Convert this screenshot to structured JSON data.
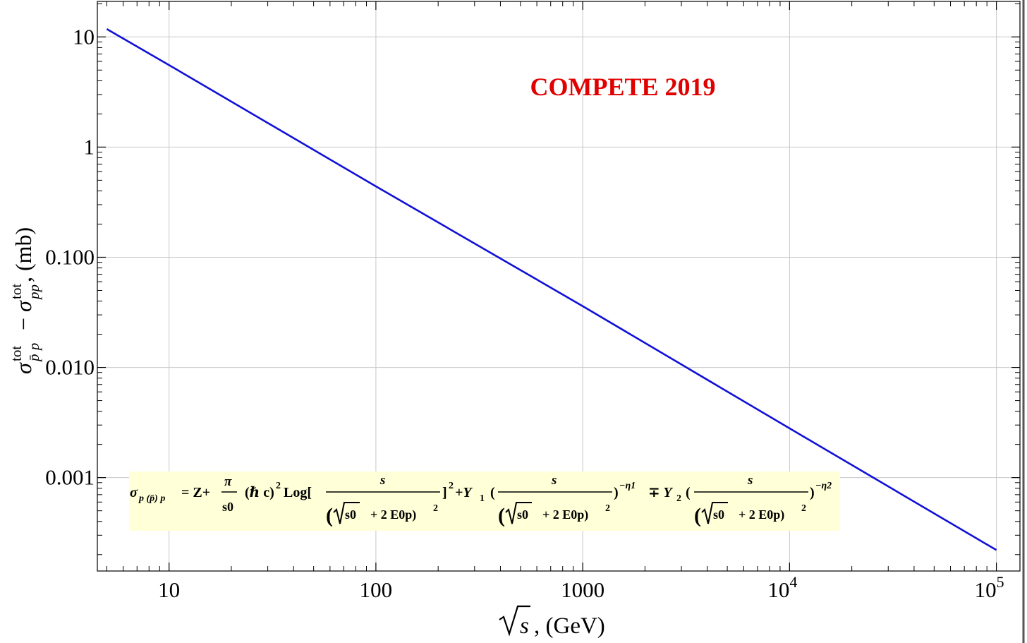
{
  "chart_data": {
    "type": "line",
    "title": "",
    "xlabel": ", (GeV)",
    "ylabel": ", (mb)",
    "x_scale": "log",
    "y_scale": "log",
    "xlim": [
      4.5,
      130000
    ],
    "ylim": [
      0.000142,
      21
    ],
    "grid": true,
    "x_ticks": [
      {
        "value": 10,
        "label": "10"
      },
      {
        "value": 100,
        "label": "100"
      },
      {
        "value": 1000,
        "label": "1000"
      },
      {
        "value": 10000,
        "label": "10",
        "exp": "4"
      },
      {
        "value": 100000,
        "label": "10",
        "exp": "5"
      }
    ],
    "y_ticks": [
      {
        "value": 10,
        "label": "10"
      },
      {
        "value": 1,
        "label": "1"
      },
      {
        "value": 0.1,
        "label": "0.100"
      },
      {
        "value": 0.01,
        "label": "0.010"
      },
      {
        "value": 0.001,
        "label": "0.001"
      }
    ],
    "series": [
      {
        "color": "#1010d8",
        "x": [
          5,
          10,
          100,
          1000,
          10000,
          100000
        ],
        "y": [
          11.8,
          5.55,
          0.44,
          0.036,
          0.0028,
          0.00022
        ]
      }
    ],
    "annotation": {
      "text": "COMPETE 2019",
      "color": "#e00000"
    }
  },
  "formula": {
    "sigma": "σ",
    "sigma_sub": "p (p̄) p",
    "eq": "= Z+",
    "pi": "π",
    "s0": "s0",
    "hbar": "(ℏ c)",
    "sq": "2",
    "log": "Log[",
    "close": "]",
    "plus_y1": "+Y",
    "y1_sub": "1",
    "mp_y2": "∓ Y",
    "y2_sub": "2",
    "s": "s",
    "den_s0": "s0",
    "den_rest": "+ 2 E0p)",
    "eta1": "−η1",
    "eta2": "−η2"
  }
}
